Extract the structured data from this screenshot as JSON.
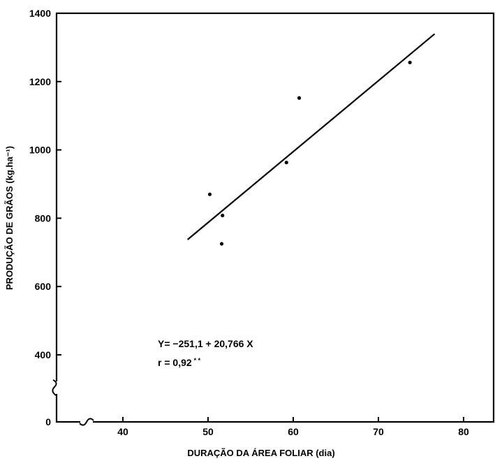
{
  "chart_data": {
    "type": "scatter",
    "xlabel": "DURAÇÃO DA ÁREA FOLIAR (dia)",
    "ylabel": "PRODUÇÃO DE GRÃOS (kg.ha⁻¹)",
    "x_ticks": [
      40,
      50,
      60,
      70,
      80
    ],
    "x_tick_labels": [
      "40",
      "50",
      "60",
      "70",
      "80"
    ],
    "y_ticks": [
      400,
      600,
      800,
      1000,
      1200,
      1400
    ],
    "y_tick_labels": [
      "400",
      "600",
      "800",
      "1000",
      "1200",
      "1400"
    ],
    "y_zero_label": "0",
    "xlim": [
      35,
      84
    ],
    "ylim": [
      320,
      1400
    ],
    "axis_breaks": [
      "x",
      "y"
    ],
    "grid": false,
    "points": [
      {
        "x": 50.2,
        "y": 870
      },
      {
        "x": 51.7,
        "y": 808
      },
      {
        "x": 51.6,
        "y": 725
      },
      {
        "x": 59.2,
        "y": 963
      },
      {
        "x": 60.7,
        "y": 1152
      },
      {
        "x": 73.7,
        "y": 1256
      }
    ],
    "regression": {
      "intercept": -251.1,
      "slope": 20.766,
      "x_range": [
        47.6,
        76.6
      ]
    },
    "annotations": {
      "equation": "Y= −251,1 + 20,766 X",
      "r_prefix": "r = 0,92",
      "r_suffix": "* *"
    }
  }
}
